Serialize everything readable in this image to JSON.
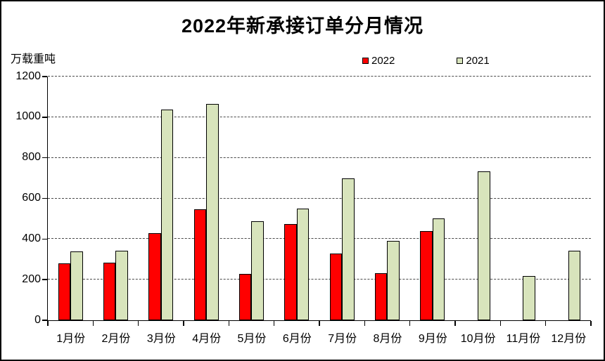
{
  "title": "2022年新承接订单分月情况",
  "unit_label": "万载重吨",
  "legend": [
    {
      "label": "2022",
      "color": "#ff0000"
    },
    {
      "label": "2021",
      "color": "#d8e4bc"
    }
  ],
  "colors": {
    "series_2022": "#ff0000",
    "series_2021": "#d8e4bc",
    "bar_border": "#000000",
    "axis": "#000000",
    "gridline": "#4a4a4a",
    "background": "#ffffff"
  },
  "chart_data": {
    "type": "bar",
    "title": "2022年新承接订单分月情况",
    "ylabel": "万载重吨",
    "xlabel": "",
    "categories": [
      "1月份",
      "2月份",
      "3月份",
      "4月份",
      "5月份",
      "6月份",
      "7月份",
      "8月份",
      "9月份",
      "10月份",
      "11月份",
      "12月份"
    ],
    "series": [
      {
        "name": "2022",
        "color": "#ff0000",
        "values": [
          281,
          283,
          430,
          546,
          228,
          475,
          327,
          233,
          439,
          null,
          null,
          null
        ]
      },
      {
        "name": "2021",
        "color": "#d8e4bc",
        "values": [
          339,
          343,
          1038,
          1066,
          487,
          549,
          700,
          390,
          503,
          732,
          218,
          342
        ]
      }
    ],
    "ylim": [
      0,
      1200
    ],
    "ytick_step": 200,
    "yticks": [
      0,
      200,
      400,
      600,
      800,
      1000,
      1200
    ],
    "grid": "horizontal-dashed",
    "legend_position": "top-center-right"
  }
}
